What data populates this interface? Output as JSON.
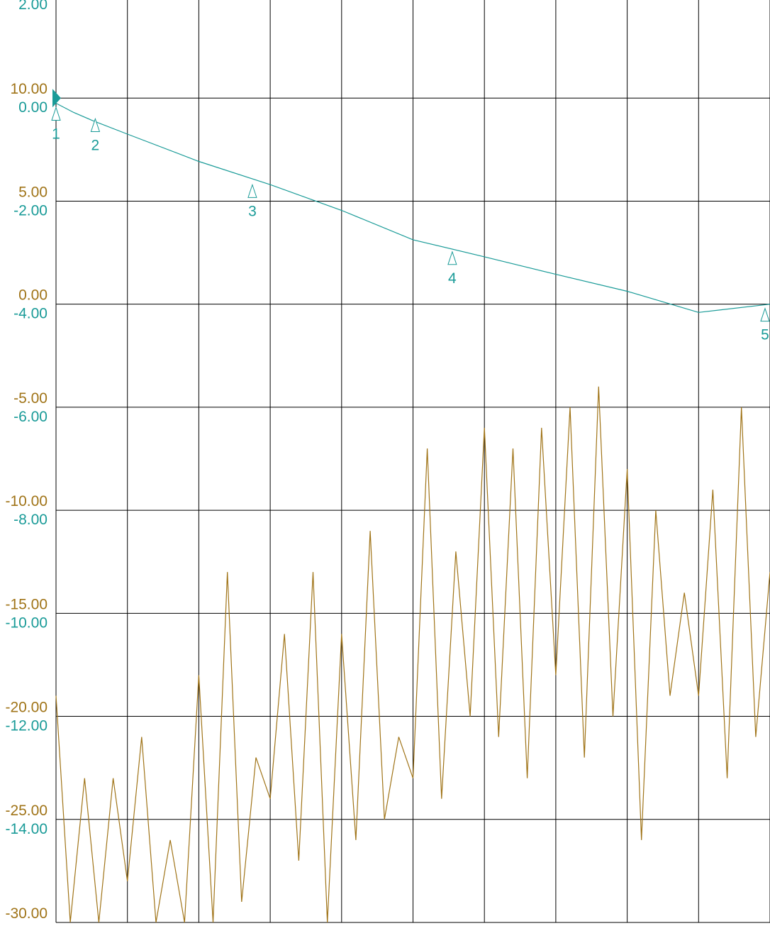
{
  "colors": {
    "background": "#ffffff",
    "grid": "#000000",
    "s11_trace": "#1a9b98",
    "s21_trace": "#a07418"
  },
  "chart_data": {
    "type": "line",
    "grid": true,
    "x_divisions": 10,
    "y_divisions": 9,
    "axes": {
      "left": {
        "color": "#1a9b98",
        "ylim": [
          -16,
          2
        ],
        "ticks": [
          {
            "value": 2,
            "label": "2.00"
          },
          {
            "value": 0,
            "label": "0.00"
          },
          {
            "value": -2,
            "label": "-2.00"
          },
          {
            "value": -4,
            "label": "-4.00"
          },
          {
            "value": -6,
            "label": "-6.00"
          },
          {
            "value": -8,
            "label": "-8.00"
          },
          {
            "value": -10,
            "label": "-10.00"
          },
          {
            "value": -12,
            "label": "-12.00"
          },
          {
            "value": -14,
            "label": "-14.00"
          }
        ]
      },
      "right": {
        "color": "#a07418",
        "ylim": [
          -30,
          15
        ],
        "ticks": [
          {
            "value": 10,
            "label": "10.00"
          },
          {
            "value": 5,
            "label": "5.00"
          },
          {
            "value": 0,
            "label": "0.00"
          },
          {
            "value": -5,
            "label": "-5.00"
          },
          {
            "value": -10,
            "label": "-10.00"
          },
          {
            "value": -15,
            "label": "-15.00"
          },
          {
            "value": -20,
            "label": "-20.00"
          },
          {
            "value": -25,
            "label": "-25.00"
          },
          {
            "value": -30,
            "label": "-30.00"
          }
        ]
      }
    },
    "reference_level_left": 0,
    "series": [
      {
        "axis": "left",
        "color": "#1a9b98",
        "x": [
          0,
          0.25,
          0.5,
          1,
          2,
          3,
          4,
          5,
          6,
          7,
          8,
          9,
          10
        ],
        "values": [
          -0.1,
          -0.28,
          -0.43,
          -0.7,
          -1.23,
          -1.68,
          -2.18,
          -2.75,
          -3.08,
          -3.42,
          -3.75,
          -4.16,
          -4.0
        ]
      },
      {
        "axis": "right",
        "color": "#a07418",
        "x": [
          0,
          0.2,
          0.4,
          0.6,
          0.8,
          1,
          1.2,
          1.4,
          1.6,
          1.8,
          2,
          2.2,
          2.4,
          2.6,
          2.8,
          3,
          3.2,
          3.4,
          3.6,
          3.8,
          4,
          4.2,
          4.4,
          4.6,
          4.8,
          5,
          5.2,
          5.4,
          5.6,
          5.8,
          6,
          6.2,
          6.4,
          6.6,
          6.8,
          7,
          7.2,
          7.4,
          7.6,
          7.8,
          8,
          8.2,
          8.4,
          8.6,
          8.8,
          9,
          9.2,
          9.4,
          9.6,
          9.8,
          10
        ],
        "values": [
          -19,
          -30,
          -23,
          -30,
          -23,
          -28,
          -21,
          -30,
          -26,
          -30,
          -18,
          -30,
          -13,
          -29,
          -22,
          -24,
          -16,
          -27,
          -13,
          -30,
          -16,
          -26,
          -11,
          -25,
          -21,
          -23,
          -7,
          -24,
          -12,
          -20,
          -6,
          -21,
          -7,
          -23,
          -6,
          -18,
          -5,
          -22,
          -4,
          -20,
          -8,
          -26,
          -10,
          -19,
          -14,
          -19,
          -9,
          -23,
          -5,
          -21,
          -13
        ]
      }
    ],
    "markers": [
      {
        "label": "1",
        "x": 0.0,
        "value": -0.1
      },
      {
        "label": "2",
        "x": 0.55,
        "value": -0.32
      },
      {
        "label": "3",
        "x": 2.75,
        "value": -1.6
      },
      {
        "label": "4",
        "x": 5.55,
        "value": -2.9
      },
      {
        "label": "5",
        "x": 10.0,
        "value": -4.0
      }
    ]
  }
}
